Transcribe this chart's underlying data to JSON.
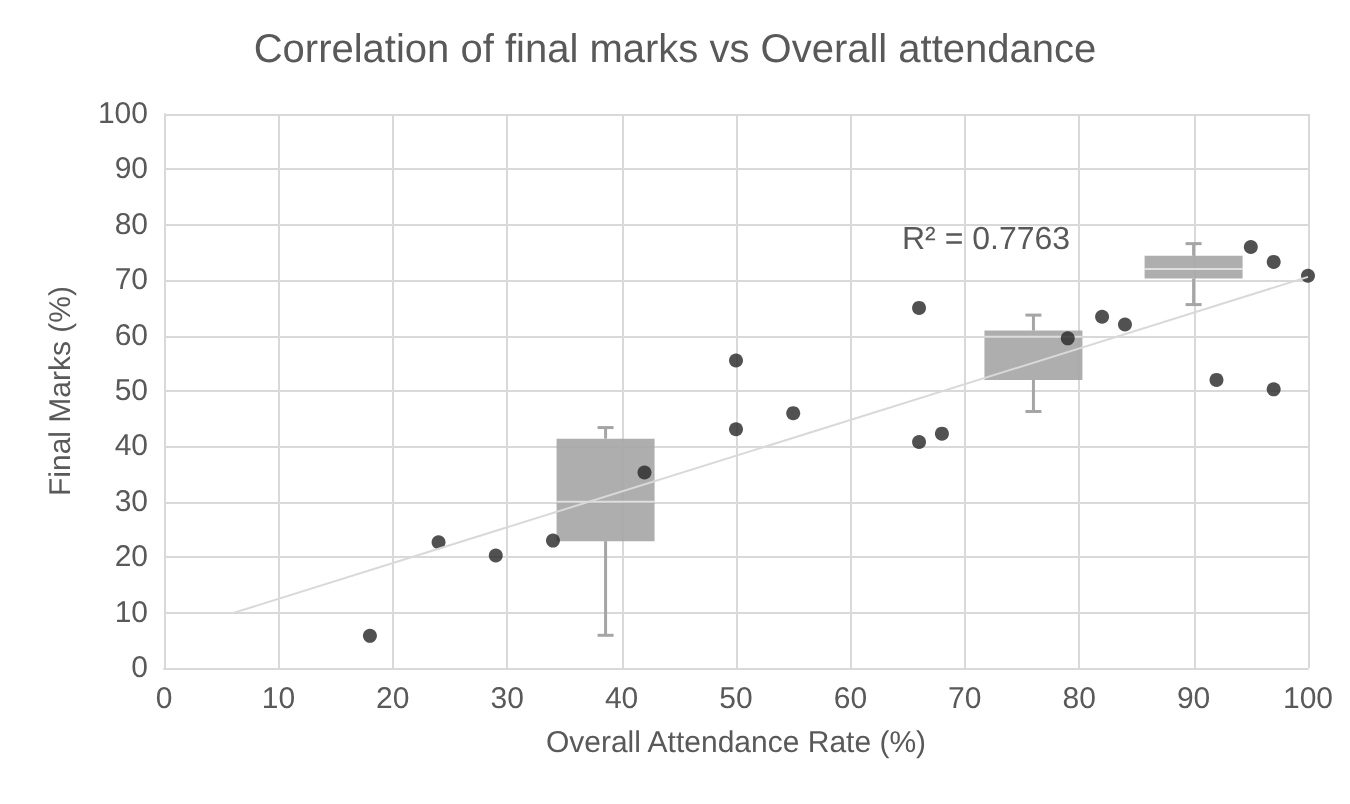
{
  "chart_data": {
    "type": "scatter",
    "title": "Correlation of final marks vs Overall attendance",
    "xlabel": "Overall Attendance Rate (%)",
    "ylabel": "Final Marks (%)",
    "xlim": [
      0,
      100
    ],
    "ylim": [
      0,
      100
    ],
    "xticks": [
      0,
      10,
      20,
      30,
      40,
      50,
      60,
      70,
      80,
      90,
      100
    ],
    "yticks": [
      0,
      10,
      20,
      30,
      40,
      50,
      60,
      70,
      80,
      90,
      100
    ],
    "grid": true,
    "marker": "circle",
    "annotations": [
      "R² = 0.7763"
    ],
    "series": [
      {
        "type": "box",
        "color": "#a5a5a5",
        "x": [
          38.6,
          76,
          90
        ],
        "boxes": [
          {
            "low": 5.9,
            "q1": 22.9,
            "median": 30,
            "q3": 41.4,
            "high": 43.4
          },
          {
            "low": 46.3,
            "q1": 52,
            "median": 59.8,
            "q3": 60.9,
            "high": 63.7
          },
          {
            "low": 65.6,
            "q1": 70.3,
            "median": 72,
            "q3": 74.4,
            "high": 76.6
          }
        ]
      },
      {
        "type": "line",
        "color": "#d9d9d9",
        "x": [
          6,
          100
        ],
        "values": [
          9.9,
          70.6
        ],
        "marker": "none"
      },
      {
        "color": "#262626",
        "x": [
          18,
          24,
          29,
          34,
          42,
          50,
          50,
          55,
          66,
          66,
          68,
          79,
          82,
          84,
          92,
          95,
          97,
          97,
          100
        ],
        "values": [
          5.8,
          22.7,
          20.3,
          23,
          35.3,
          55.5,
          43.1,
          46,
          65,
          40.8,
          42.3,
          59.5,
          63.4,
          62,
          52,
          76,
          73.3,
          50.3,
          70.8
        ]
      }
    ]
  }
}
